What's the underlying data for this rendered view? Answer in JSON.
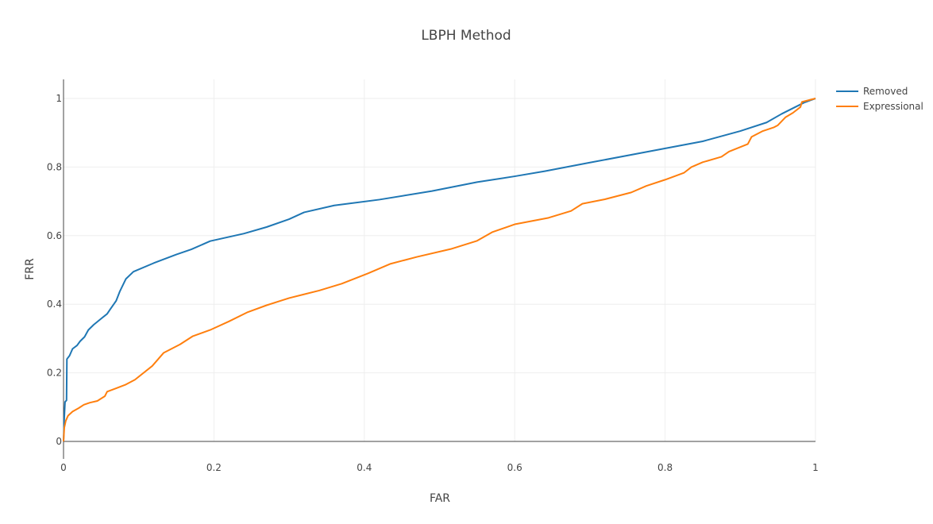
{
  "chart_data": {
    "type": "line",
    "title": "LBPH Method",
    "xlabel": "FAR",
    "ylabel": "FRR",
    "xlim": [
      0,
      1
    ],
    "ylim": [
      0,
      1
    ],
    "x_ticks": [
      "0",
      "0.2",
      "0.4",
      "0.6",
      "0.8",
      "1"
    ],
    "y_ticks": [
      "0",
      "0.2",
      "0.4",
      "0.6",
      "0.8",
      "1"
    ],
    "grid": true,
    "legend_position": "top-right",
    "series": [
      {
        "name": "Removed",
        "color": "#1f77b4",
        "points": [
          [
            0,
            0
          ],
          [
            0.001,
            0.07
          ],
          [
            0.002,
            0.115
          ],
          [
            0.004,
            0.12
          ],
          [
            0.0045,
            0.24
          ],
          [
            0.008,
            0.25
          ],
          [
            0.012,
            0.27
          ],
          [
            0.018,
            0.28
          ],
          [
            0.022,
            0.292
          ],
          [
            0.028,
            0.305
          ],
          [
            0.033,
            0.325
          ],
          [
            0.04,
            0.34
          ],
          [
            0.05,
            0.358
          ],
          [
            0.058,
            0.372
          ],
          [
            0.062,
            0.385
          ],
          [
            0.07,
            0.41
          ],
          [
            0.075,
            0.438
          ],
          [
            0.083,
            0.474
          ],
          [
            0.093,
            0.495
          ],
          [
            0.12,
            0.52
          ],
          [
            0.15,
            0.545
          ],
          [
            0.17,
            0.56
          ],
          [
            0.195,
            0.584
          ],
          [
            0.24,
            0.606
          ],
          [
            0.27,
            0.625
          ],
          [
            0.3,
            0.648
          ],
          [
            0.32,
            0.668
          ],
          [
            0.36,
            0.688
          ],
          [
            0.42,
            0.705
          ],
          [
            0.49,
            0.73
          ],
          [
            0.55,
            0.756
          ],
          [
            0.6,
            0.773
          ],
          [
            0.64,
            0.788
          ],
          [
            0.7,
            0.813
          ],
          [
            0.78,
            0.846
          ],
          [
            0.85,
            0.875
          ],
          [
            0.9,
            0.905
          ],
          [
            0.935,
            0.93
          ],
          [
            0.955,
            0.955
          ],
          [
            0.985,
            0.988
          ],
          [
            1,
            1
          ]
        ]
      },
      {
        "name": "Expressional",
        "color": "#ff7f0e",
        "points": [
          [
            0,
            0
          ],
          [
            0.001,
            0.04
          ],
          [
            0.003,
            0.06
          ],
          [
            0.006,
            0.075
          ],
          [
            0.012,
            0.087
          ],
          [
            0.02,
            0.097
          ],
          [
            0.027,
            0.107
          ],
          [
            0.035,
            0.113
          ],
          [
            0.045,
            0.118
          ],
          [
            0.055,
            0.132
          ],
          [
            0.058,
            0.145
          ],
          [
            0.07,
            0.155
          ],
          [
            0.082,
            0.165
          ],
          [
            0.095,
            0.18
          ],
          [
            0.118,
            0.22
          ],
          [
            0.133,
            0.258
          ],
          [
            0.155,
            0.283
          ],
          [
            0.172,
            0.307
          ],
          [
            0.195,
            0.325
          ],
          [
            0.22,
            0.35
          ],
          [
            0.245,
            0.377
          ],
          [
            0.27,
            0.397
          ],
          [
            0.3,
            0.418
          ],
          [
            0.34,
            0.44
          ],
          [
            0.37,
            0.46
          ],
          [
            0.405,
            0.49
          ],
          [
            0.435,
            0.518
          ],
          [
            0.47,
            0.538
          ],
          [
            0.515,
            0.561
          ],
          [
            0.55,
            0.585
          ],
          [
            0.57,
            0.61
          ],
          [
            0.6,
            0.633
          ],
          [
            0.645,
            0.652
          ],
          [
            0.675,
            0.672
          ],
          [
            0.69,
            0.693
          ],
          [
            0.72,
            0.706
          ],
          [
            0.755,
            0.726
          ],
          [
            0.775,
            0.745
          ],
          [
            0.8,
            0.763
          ],
          [
            0.825,
            0.783
          ],
          [
            0.835,
            0.8
          ],
          [
            0.85,
            0.814
          ],
          [
            0.875,
            0.83
          ],
          [
            0.885,
            0.845
          ],
          [
            0.91,
            0.867
          ],
          [
            0.915,
            0.888
          ],
          [
            0.93,
            0.905
          ],
          [
            0.945,
            0.916
          ],
          [
            0.95,
            0.922
          ],
          [
            0.96,
            0.945
          ],
          [
            0.97,
            0.958
          ],
          [
            0.98,
            0.975
          ],
          [
            0.982,
            0.99
          ],
          [
            1,
            1
          ]
        ]
      }
    ]
  }
}
